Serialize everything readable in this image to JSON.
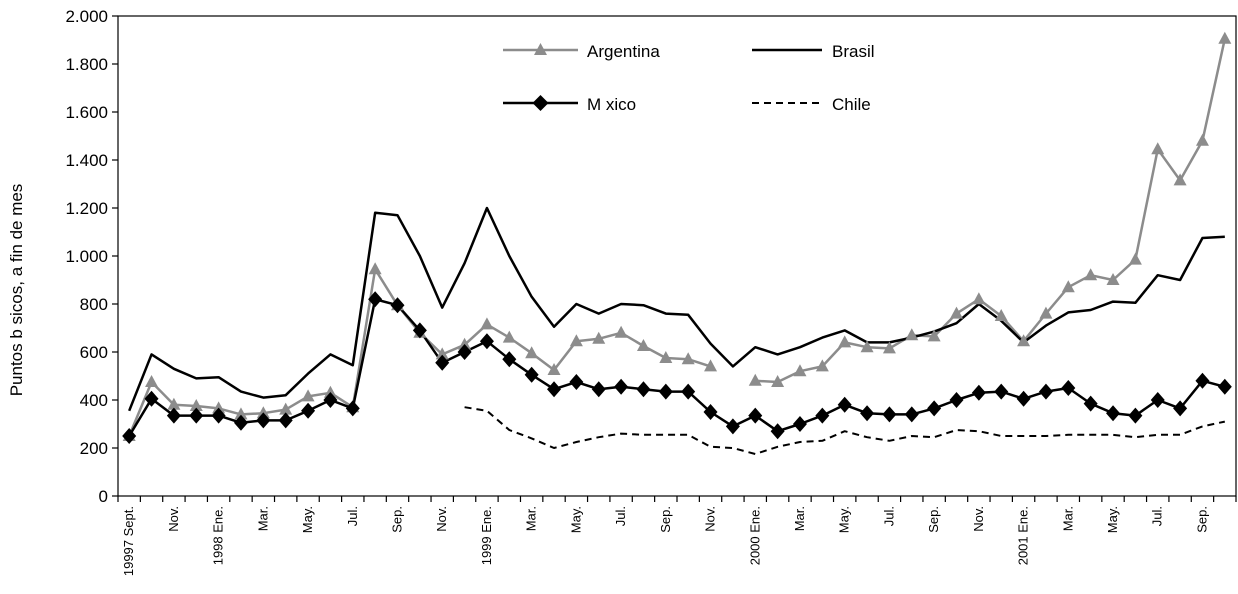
{
  "chart_data": {
    "type": "line",
    "ylabel": "Puntos b sicos, a fin de mes",
    "ylim": [
      0,
      2000
    ],
    "yticks": [
      0,
      200,
      400,
      600,
      800,
      1000,
      1200,
      1400,
      1600,
      1800,
      2000
    ],
    "ytick_labels": [
      "0",
      "200",
      "400",
      "600",
      "800",
      "1.000",
      "1.200",
      "1.400",
      "1.600",
      "1.800",
      "2.000"
    ],
    "grid": false,
    "legend_position": "top-center",
    "x_tick_labels": [
      "19997 Sept.",
      "",
      "Nov.",
      "",
      "1998 Ene.",
      "",
      "Mar.",
      "",
      "May.",
      "",
      "Jul.",
      "",
      "Sep.",
      "",
      "Nov.",
      "",
      "1999 Ene.",
      "",
      "Mar.",
      "",
      "May.",
      "",
      "Jul.",
      "",
      "Sep.",
      "",
      "Nov.",
      "",
      "2000 Ene.",
      "",
      "Mar.",
      "",
      "May.",
      "",
      "Jul.",
      "",
      "Sep.",
      "",
      "Nov.",
      "",
      "2001 Ene.",
      "",
      "Mar.",
      "",
      "May.",
      "",
      "Jul.",
      "",
      "Sep.",
      ""
    ],
    "series": [
      {
        "name": "Argentina",
        "color": "#8c8c8c",
        "marker": "triangle",
        "values": [
          250,
          475,
          380,
          375,
          365,
          340,
          345,
          360,
          415,
          430,
          370,
          945,
          795,
          680,
          590,
          630,
          715,
          660,
          595,
          525,
          645,
          655,
          680,
          625,
          575,
          570,
          540,
          null,
          480,
          475,
          520,
          540,
          640,
          620,
          615,
          670,
          665,
          760,
          820,
          750,
          645,
          760,
          870,
          920,
          900,
          985,
          1445,
          1315,
          1480,
          1905
        ]
      },
      {
        "name": "Brasil",
        "color": "#000000",
        "marker": "none",
        "values": [
          355,
          590,
          530,
          490,
          495,
          435,
          410,
          420,
          510,
          590,
          545,
          1180,
          1170,
          1000,
          785,
          970,
          1200,
          1000,
          830,
          705,
          800,
          760,
          800,
          795,
          760,
          755,
          635,
          540,
          620,
          590,
          620,
          660,
          690,
          640,
          640,
          660,
          685,
          720,
          800,
          730,
          640,
          710,
          765,
          775,
          810,
          805,
          920,
          900,
          1075,
          1080
        ]
      },
      {
        "name": "M xico",
        "color": "#000000",
        "marker": "diamond",
        "values": [
          250,
          405,
          335,
          335,
          335,
          305,
          315,
          315,
          355,
          400,
          365,
          820,
          795,
          690,
          555,
          600,
          645,
          570,
          505,
          445,
          475,
          445,
          455,
          445,
          435,
          435,
          350,
          290,
          335,
          270,
          300,
          335,
          380,
          345,
          340,
          340,
          365,
          400,
          430,
          435,
          405,
          435,
          450,
          385,
          345,
          335,
          400,
          365,
          480,
          455
        ]
      },
      {
        "name": "Chile",
        "color": "#000000",
        "marker": "none",
        "dashed": true,
        "values": [
          null,
          null,
          null,
          null,
          null,
          null,
          null,
          null,
          null,
          null,
          null,
          null,
          null,
          null,
          null,
          370,
          355,
          275,
          240,
          200,
          225,
          245,
          260,
          255,
          255,
          255,
          205,
          200,
          175,
          205,
          225,
          230,
          270,
          245,
          230,
          250,
          245,
          275,
          270,
          250,
          250,
          250,
          255,
          255,
          255,
          245,
          255,
          255,
          290,
          310
        ]
      }
    ]
  }
}
